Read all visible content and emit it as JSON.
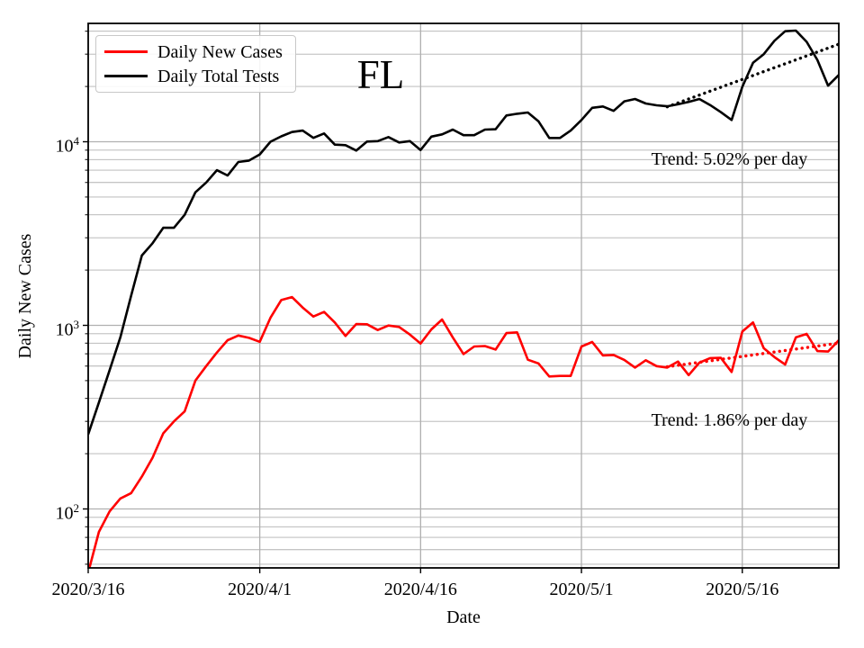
{
  "chart_data": {
    "type": "line",
    "title": "FL",
    "xlabel": "Date",
    "ylabel": "Daily New Cases",
    "yscale": "log",
    "grid": true,
    "legend_position": "upper left",
    "x_unit": "days since 2020/3/16",
    "x_span_days": 70,
    "x_ticks": [
      {
        "label": "2020/3/16",
        "day": 0
      },
      {
        "label": "2020/4/1",
        "day": 16
      },
      {
        "label": "2020/4/16",
        "day": 31
      },
      {
        "label": "2020/5/1",
        "day": 46
      },
      {
        "label": "2020/5/16",
        "day": 61
      }
    ],
    "y_ticks": [
      {
        "base": "10",
        "exp": "2",
        "value": 100
      },
      {
        "base": "10",
        "exp": "3",
        "value": 1000
      },
      {
        "base": "10",
        "exp": "4",
        "value": 10000
      }
    ],
    "ylim": [
      48,
      44000
    ],
    "colors": {
      "cases": "#ff0000",
      "tests": "#000000",
      "grid": "#b0b0b0"
    },
    "series": [
      {
        "name": "Daily New Cases",
        "color": "#ff0000",
        "values": [
          45,
          75,
          97,
          114,
          122,
          150,
          190,
          258,
          300,
          340,
          500,
          600,
          711,
          830,
          880,
          855,
          813,
          1100,
          1374,
          1426,
          1250,
          1117,
          1183,
          1037,
          875,
          1017,
          1014,
          943,
          998,
          980,
          891,
          796,
          950,
          1076,
          860,
          698,
          767,
          771,
          738,
          908,
          916,
          650,
          620,
          527,
          530,
          530,
          767,
          812,
          686,
          690,
          648,
          589,
          645,
          600,
          589,
          635,
          536,
          627,
          663,
          665,
          557,
          925,
          1037,
          751,
          671,
          612,
          860,
          898,
          724,
          720,
          830
        ]
      },
      {
        "name": "Daily Total Tests",
        "color": "#000000",
        "values": [
          255,
          380,
          570,
          860,
          1450,
          2400,
          2800,
          3400,
          3400,
          4000,
          5300,
          6000,
          7000,
          6550,
          7760,
          7900,
          8530,
          10000,
          10700,
          11300,
          11500,
          10500,
          11100,
          9640,
          9580,
          8950,
          10020,
          10080,
          10600,
          9910,
          10080,
          9010,
          10670,
          10970,
          11650,
          10860,
          10860,
          11650,
          11700,
          13900,
          14200,
          14430,
          12900,
          10480,
          10480,
          11500,
          13140,
          15300,
          15560,
          14720,
          16600,
          17100,
          16160,
          15800,
          15600,
          16000,
          16480,
          17100,
          15850,
          14500,
          13140,
          19900,
          26900,
          30000,
          35500,
          40000,
          40300,
          35000,
          27900,
          20200,
          23100
        ]
      }
    ],
    "trend_lines": [
      {
        "series": "Daily Total Tests",
        "rate_label": "5.02% per day",
        "color": "#000000",
        "start_day": 54,
        "end_day": 70,
        "start_value": 15500,
        "end_value": 34000
      },
      {
        "series": "Daily New Cases",
        "rate_label": "1.86% per day",
        "color": "#ff0000",
        "start_day": 54,
        "end_day": 70,
        "start_value": 595,
        "end_value": 800
      }
    ],
    "annotations": [
      {
        "text": "Trend: 5.02% per day",
        "day": 59.8,
        "value": 7980
      },
      {
        "text": "Trend: 1.86% per day",
        "day": 59.8,
        "value": 304
      }
    ]
  }
}
